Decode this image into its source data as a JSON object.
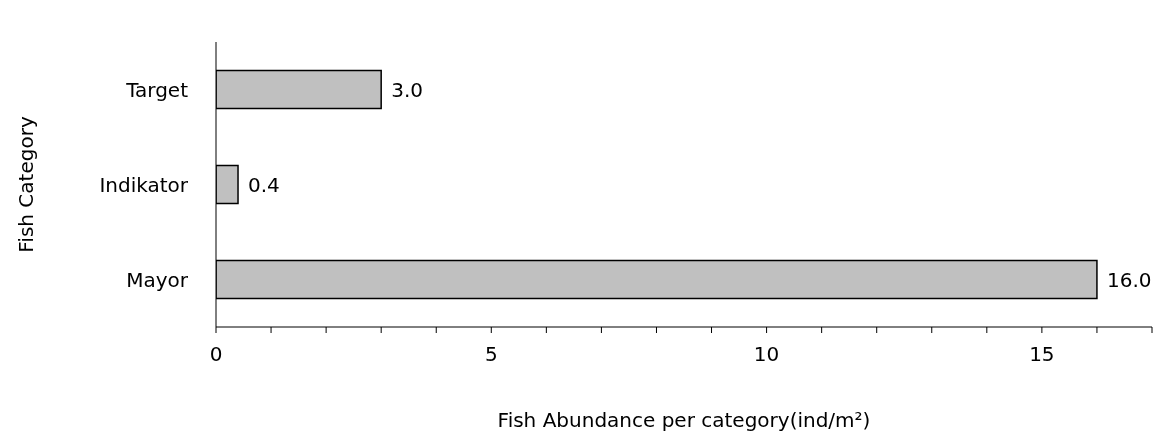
{
  "chart_data": {
    "type": "bar",
    "orientation": "horizontal",
    "categories": [
      "Target",
      "Indikator",
      "Mayor"
    ],
    "values": [
      3,
      0.4,
      16
    ],
    "value_labels": [
      "3.0",
      "0.4",
      "16.0"
    ],
    "color": "#c0c0c0",
    "xlabel": "Fish Abundance per category(ind/m²)",
    "ylabel": "Fish Category",
    "xlim": [
      0,
      17
    ],
    "xticks": [
      0,
      {
        "value": 1,
        "label": null
      },
      {
        "value": 2,
        "label": null
      },
      {
        "value": 3,
        "label": null
      },
      {
        "value": 4,
        "label": null
      },
      5,
      {
        "value": 6,
        "label": null
      },
      {
        "value": 7,
        "label": null
      },
      {
        "value": 8,
        "label": null
      },
      {
        "value": 9,
        "label": null
      },
      10,
      {
        "value": 11,
        "label": null
      },
      {
        "value": 12,
        "label": null
      },
      {
        "value": 13,
        "label": null
      },
      {
        "value": 14,
        "label": null
      },
      15,
      {
        "value": 16,
        "label": null
      },
      {
        "value": 17,
        "label": null
      }
    ],
    "grid": false,
    "legend": false
  }
}
